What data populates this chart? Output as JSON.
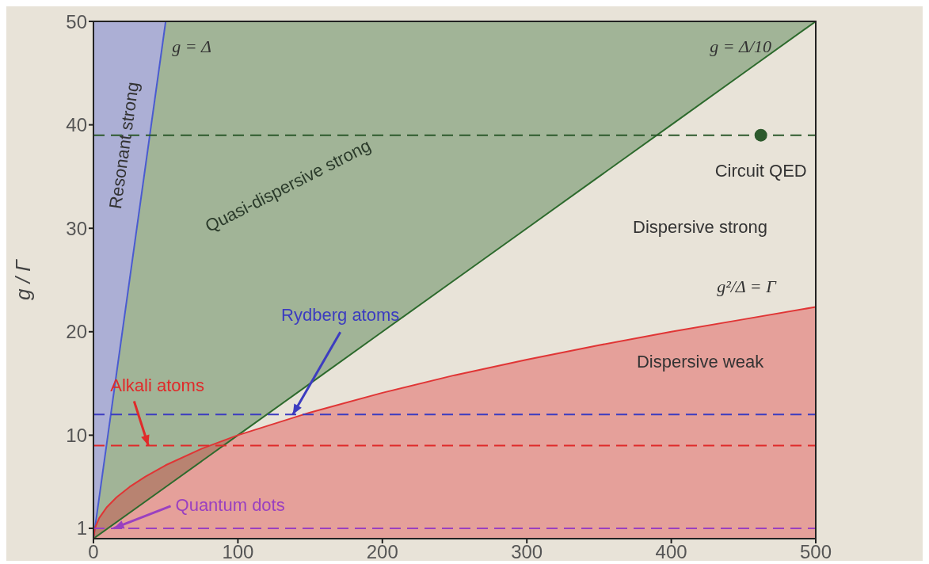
{
  "chart_data": {
    "type": "line",
    "ylabel": "g / Γ",
    "xlim": [
      0,
      500
    ],
    "xticks": [
      0,
      100,
      200,
      300,
      400,
      500
    ],
    "ylim": [
      0,
      50
    ],
    "yticks": [
      1,
      10,
      20,
      30,
      40,
      50
    ],
    "series": [
      {
        "name": "g = Δ",
        "color": "#4a5bd0",
        "x": [
          0,
          50
        ],
        "values": [
          0,
          50
        ],
        "lower": [
          0,
          50
        ],
        "upper": [
          50,
          50
        ]
      },
      {
        "name": "g = Δ/10",
        "color": "#2d6a2d",
        "x": [
          0,
          50,
          100,
          150,
          200,
          250,
          300,
          350,
          400,
          450,
          500
        ],
        "values": [
          0,
          5,
          10,
          15,
          20,
          25,
          30,
          35,
          40,
          45,
          50
        ],
        "lower": [
          0,
          5,
          10,
          15,
          20,
          25,
          30,
          35,
          40,
          45,
          50
        ],
        "upper": [
          0,
          50,
          50,
          50,
          50,
          50,
          50,
          50,
          50,
          50,
          50
        ]
      },
      {
        "name": "g²/Δ = Γ",
        "color": "#e03535",
        "x": [
          0,
          1,
          4,
          9,
          16,
          25,
          36,
          50,
          75,
          100,
          150,
          200,
          250,
          300,
          350,
          400,
          450,
          500
        ],
        "values": [
          0,
          1,
          2,
          3,
          4,
          5,
          6,
          7.1,
          8.7,
          10,
          12.2,
          14.1,
          15.8,
          17.3,
          18.7,
          20,
          21.2,
          22.4
        ],
        "lower": [
          0,
          0,
          0,
          0,
          0,
          0,
          0,
          0,
          0,
          0,
          0,
          0,
          0,
          0,
          0,
          0,
          0,
          0
        ],
        "upper": [
          0,
          1,
          2,
          3,
          4,
          5,
          6,
          7.1,
          8.7,
          10,
          12.2,
          14.1,
          15.8,
          17.3,
          18.7,
          20,
          21.2,
          22.4
        ]
      },
      {
        "name": "Circuit QED",
        "type": "scatter",
        "color": "#2d5a2d",
        "marker": "circle",
        "x": [
          462
        ],
        "values": [
          39
        ]
      }
    ],
    "ref_lines": [
      {
        "axis": "y",
        "value": 39,
        "color": "#2d5a2d",
        "line_style": "dashed"
      },
      {
        "axis": "y",
        "value": 12,
        "color": "#3c3cc0",
        "line_style": "dashed"
      },
      {
        "axis": "y",
        "value": 9,
        "color": "#e02a2a",
        "line_style": "dashed"
      },
      {
        "axis": "y",
        "value": 1,
        "color": "#9a40c0",
        "line_style": "dashed"
      }
    ],
    "annotations": [
      "Resonant strong",
      "Quasi-dispersive strong",
      "Dispersive strong",
      "Dispersive weak",
      {
        "text": "Rydberg atoms",
        "x": 138,
        "y": 12
      },
      {
        "text": "Alkali atoms",
        "x": 38,
        "y": 9
      },
      {
        "text": "Quantum dots",
        "x": 14,
        "y": 1
      }
    ]
  }
}
